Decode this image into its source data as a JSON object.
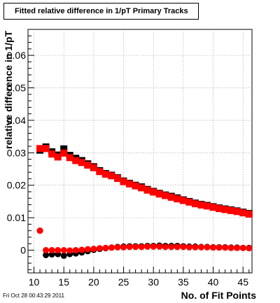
{
  "header": {
    "title": "Fitted relative difference in 1/pT Primary Tracks"
  },
  "footer": {
    "timestamp": "Fri Oct 28 00:43:29 2011"
  },
  "chart_data": {
    "type": "scatter",
    "title": "Fitted relative difference in 1/pT Primary Tracks",
    "xlabel": "No. of Fit Points",
    "ylabel": "relative difference in 1/pT",
    "xlim": [
      9,
      46.5
    ],
    "ylim": [
      -0.007,
      0.068
    ],
    "x_ticks": [
      10,
      15,
      20,
      25,
      30,
      35,
      40,
      45
    ],
    "x_tick_labels": [
      "10",
      "15",
      "20",
      "25",
      "30",
      "35",
      "40",
      "45"
    ],
    "y_ticks": [
      0,
      0.01,
      0.02,
      0.03,
      0.04,
      0.05,
      0.06
    ],
    "y_tick_labels": [
      "0",
      "0.01",
      "0.02",
      "0.03",
      "0.04",
      "0.05",
      "0.06"
    ],
    "grid": true,
    "x": [
      11,
      12,
      13,
      14,
      15,
      16,
      17,
      18,
      19,
      20,
      21,
      22,
      23,
      24,
      25,
      26,
      27,
      28,
      29,
      30,
      31,
      32,
      33,
      34,
      35,
      36,
      37,
      38,
      39,
      40,
      41,
      42,
      43,
      44,
      45,
      46
    ],
    "series": [
      {
        "marker": "square",
        "color": "#000000",
        "values": [
          0.0308,
          0.0318,
          0.0303,
          0.0293,
          0.0312,
          0.0292,
          0.0283,
          0.0276,
          0.0266,
          0.0257,
          0.0245,
          0.0236,
          0.0231,
          0.0223,
          0.0213,
          0.0206,
          0.02,
          0.0195,
          0.0187,
          0.0181,
          0.0175,
          0.017,
          0.0166,
          0.0161,
          0.0155,
          0.015,
          0.0145,
          0.0141,
          0.0138,
          0.0134,
          0.013,
          0.0127,
          0.0124,
          0.0121,
          0.0117,
          0.0113
        ]
      },
      {
        "marker": "square",
        "color": "#ff0000",
        "values": [
          0.0313,
          0.0313,
          0.0296,
          0.0287,
          0.0299,
          0.0285,
          0.0276,
          0.027,
          0.0262,
          0.0254,
          0.0242,
          0.0234,
          0.0229,
          0.0221,
          0.0211,
          0.0204,
          0.0198,
          0.0192,
          0.0185,
          0.0179,
          0.0173,
          0.0168,
          0.0163,
          0.0158,
          0.0153,
          0.0148,
          0.0143,
          0.0139,
          0.0136,
          0.0132,
          0.0128,
          0.0125,
          0.0122,
          0.0119,
          0.0115,
          0.0111
        ]
      },
      {
        "marker": "circle",
        "color": "#000000",
        "values": [
          0.006,
          -0.0015,
          -0.0013,
          -0.0012,
          -0.0017,
          -0.0012,
          -0.001,
          -0.0007,
          -0.0003,
          0.0001,
          0.0004,
          0.0006,
          0.0008,
          0.001,
          0.0011,
          0.0012,
          0.0012,
          0.0012,
          0.0013,
          0.0013,
          0.0014,
          0.0013,
          0.0013,
          0.0013,
          0.0012,
          0.0011,
          0.0011,
          0.001,
          0.001,
          0.0009,
          0.0009,
          0.0009,
          0.0008,
          0.0008,
          0.0007,
          0.0007
        ]
      },
      {
        "marker": "circle",
        "color": "#ff0000",
        "values": [
          0.006,
          0.0,
          0.0,
          0.0,
          0.0,
          -0.0001,
          0.0,
          0.0001,
          0.0003,
          0.0004,
          0.0006,
          0.0007,
          0.0008,
          0.0009,
          0.0009,
          0.001,
          0.001,
          0.001,
          0.0011,
          0.0011,
          0.0011,
          0.001,
          0.001,
          0.001,
          0.001,
          0.0009,
          0.0009,
          0.0009,
          0.0009,
          0.0008,
          0.0008,
          0.0008,
          0.0007,
          0.0007,
          0.0007,
          0.0006
        ]
      }
    ]
  }
}
